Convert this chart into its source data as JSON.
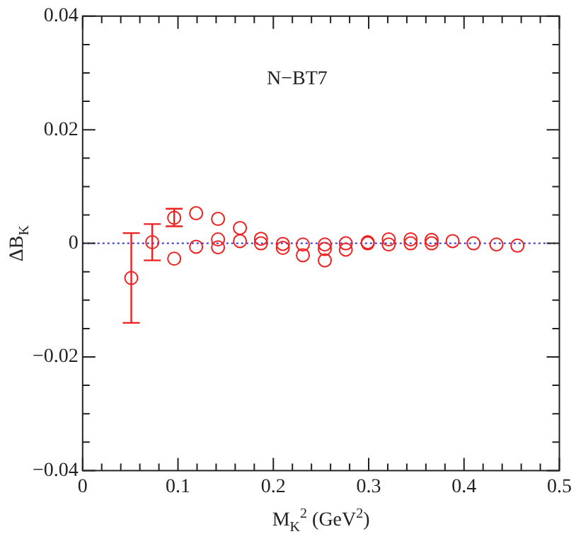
{
  "chart_data": {
    "type": "scatter",
    "xlabel": "M$_{K}$$^{2}$ (GeV$^{2}$)",
    "ylabel": "ΔB$_{K}$",
    "annotations": [
      "N−BT7"
    ],
    "xlim": [
      0,
      0.5
    ],
    "xticks": [
      0,
      {
        "value": 0.02,
        "label": null
      },
      {
        "value": 0.04,
        "label": null
      },
      {
        "value": 0.06,
        "label": null
      },
      {
        "value": 0.08,
        "label": null
      },
      0.1,
      {
        "value": 0.12,
        "label": null
      },
      {
        "value": 0.14,
        "label": null
      },
      {
        "value": 0.16,
        "label": null
      },
      {
        "value": 0.18,
        "label": null
      },
      0.2,
      {
        "value": 0.22,
        "label": null
      },
      {
        "value": 0.24,
        "label": null
      },
      {
        "value": 0.26,
        "label": null
      },
      {
        "value": 0.28,
        "label": null
      },
      0.3,
      {
        "value": 0.32,
        "label": null
      },
      {
        "value": 0.34,
        "label": null
      },
      {
        "value": 0.36,
        "label": null
      },
      {
        "value": 0.38,
        "label": null
      },
      0.4,
      {
        "value": 0.42,
        "label": null
      },
      {
        "value": 0.44,
        "label": null
      },
      {
        "value": 0.46,
        "label": null
      },
      {
        "value": 0.48,
        "label": null
      },
      0.5
    ],
    "ylim": [
      -0.04,
      0.04
    ],
    "yticks": [
      {
        "value": -0.04,
        "label": "−0.04"
      },
      {
        "value": -0.035,
        "label": null
      },
      {
        "value": -0.03,
        "label": null
      },
      {
        "value": -0.025,
        "label": null
      },
      {
        "value": -0.02,
        "label": "−0.02"
      },
      {
        "value": -0.015,
        "label": null
      },
      {
        "value": -0.01,
        "label": null
      },
      {
        "value": -0.005,
        "label": null
      },
      0,
      {
        "value": 0.005,
        "label": null
      },
      {
        "value": 0.01,
        "label": null
      },
      {
        "value": 0.015,
        "label": null
      },
      0.02,
      {
        "value": 0.025,
        "label": null
      },
      {
        "value": 0.03,
        "label": null
      },
      {
        "value": 0.035,
        "label": null
      },
      0.04
    ],
    "grid": false,
    "legend": false,
    "marker": "circle",
    "ref_lines": [
      {
        "axis": "y",
        "value": 0,
        "color": "#3030d0",
        "line_style": "dotted"
      }
    ],
    "series": [
      {
        "color": "#ee2020",
        "x": [
          0.051,
          0.073,
          0.096,
          0.096,
          0.119,
          0.119,
          0.142,
          0.142,
          0.142,
          0.165,
          0.165,
          0.187,
          0.187,
          0.21,
          0.21,
          0.231,
          0.231,
          0.254,
          0.254,
          0.254,
          0.276,
          0.276,
          0.299,
          0.299,
          0.321,
          0.321,
          0.344,
          0.344,
          0.366,
          0.366,
          0.388,
          0.41,
          0.434,
          0.456
        ],
        "values": [
          -0.0061,
          0.0002,
          0.0045,
          -0.0027,
          0.0053,
          -0.0006,
          0.0043,
          0.0007,
          -0.0007,
          0.0027,
          0.0004,
          0.0008,
          0,
          -0.0001,
          -0.0008,
          -0.0002,
          -0.0021,
          -0.0002,
          -0.001,
          -0.003,
          0,
          -0.0011,
          0.0002,
          0,
          0.0007,
          -0.0002,
          0.0007,
          0,
          0.0006,
          0,
          0.0004,
          0,
          -0.0002,
          -0.0004
        ],
        "errors": [
          [
            -0.014,
            0.0018
          ],
          [
            -0.003,
            0.0034
          ],
          [
            0.003,
            0.0061
          ],
          null,
          null,
          null,
          null,
          null,
          null,
          null,
          null,
          null,
          null,
          null,
          null,
          null,
          null,
          null,
          null,
          null,
          null,
          null,
          null,
          null,
          null,
          null,
          null,
          null,
          null,
          null,
          null,
          null,
          null,
          null
        ]
      }
    ]
  }
}
